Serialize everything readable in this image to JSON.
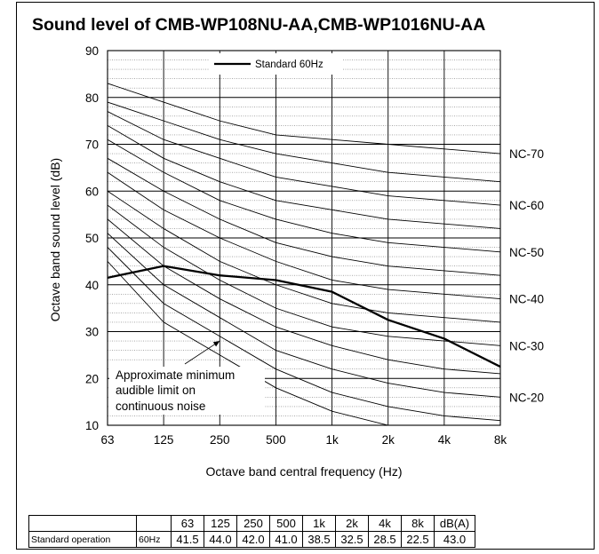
{
  "chart_data": {
    "type": "line",
    "title": "Sound level of CMB-WP108NU-AA,CMB-WP1016NU-AA",
    "xlabel": "Octave band central frequency (Hz)",
    "ylabel": "Octave band sound level (dB)",
    "x_scale": "log2",
    "categories": [
      "63",
      "125",
      "250",
      "500",
      "1k",
      "2k",
      "4k",
      "8k"
    ],
    "ylim": [
      10,
      90
    ],
    "yticks": [
      10,
      20,
      30,
      40,
      50,
      60,
      70,
      80,
      90
    ],
    "grid": true,
    "legend": {
      "position": "top",
      "entries": [
        "Standard 60Hz"
      ]
    },
    "series": [
      {
        "name": "Standard 60Hz",
        "values": [
          41.5,
          44.0,
          42.0,
          41.0,
          38.5,
          32.5,
          28.5,
          22.5
        ]
      }
    ],
    "nc_curves": [
      {
        "label": "NC-70",
        "values": [
          83,
          79,
          75,
          72,
          71,
          70,
          69,
          68
        ]
      },
      {
        "label": "",
        "values": [
          79,
          75,
          71,
          68,
          66,
          64,
          63,
          62
        ]
      },
      {
        "label": "NC-60",
        "values": [
          77,
          71,
          67,
          63,
          61,
          59,
          58,
          57
        ]
      },
      {
        "label": "",
        "values": [
          74,
          67,
          62,
          58,
          56,
          54,
          53,
          52
        ]
      },
      {
        "label": "NC-50",
        "values": [
          71,
          64,
          58,
          54,
          51,
          49,
          48,
          47
        ]
      },
      {
        "label": "",
        "values": [
          67,
          60,
          54,
          49,
          46,
          44,
          43,
          42
        ]
      },
      {
        "label": "NC-40",
        "values": [
          64,
          56,
          50,
          45,
          41,
          39,
          38,
          37
        ]
      },
      {
        "label": "",
        "values": [
          60,
          52,
          45,
          40,
          36,
          34,
          33,
          32
        ]
      },
      {
        "label": "NC-30",
        "values": [
          57,
          48,
          41,
          35,
          31,
          29,
          28,
          27
        ]
      },
      {
        "label": "",
        "values": [
          54,
          44,
          37,
          31,
          27,
          24,
          22,
          21
        ]
      },
      {
        "label": "NC-20",
        "values": [
          51,
          40,
          33,
          26,
          22,
          19,
          17,
          16
        ]
      },
      {
        "label": "",
        "values": [
          48,
          36,
          29,
          22,
          17,
          14,
          12,
          11
        ]
      },
      {
        "label": "",
        "values": [
          45,
          32,
          25,
          18,
          13,
          10,
          10,
          10
        ]
      }
    ],
    "annotation": {
      "lines": [
        "Approximate minimum",
        "audible limit on",
        "continuous noise"
      ],
      "points_to": {
        "x": "250",
        "y": 28
      }
    },
    "table": {
      "header": [
        "",
        "",
        "63",
        "125",
        "250",
        "500",
        "1k",
        "2k",
        "4k",
        "8k",
        "dB(A)"
      ],
      "rows": [
        [
          "Standard operation",
          "60Hz",
          "41.5",
          "44.0",
          "42.0",
          "41.0",
          "38.5",
          "32.5",
          "28.5",
          "22.5",
          "43.0"
        ]
      ]
    }
  }
}
